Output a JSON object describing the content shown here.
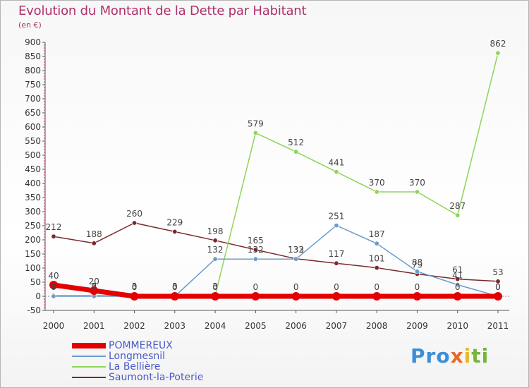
{
  "header": {
    "title": "Evolution du Montant de la Dette par Habitant",
    "subtitle": "(en €)"
  },
  "logo": {
    "text": "Proxiti"
  },
  "chart_data": {
    "type": "line",
    "title": "Evolution du Montant de la Dette par Habitant",
    "ylabel": "(en €)",
    "xlabel": "",
    "x": [
      "2000",
      "2001",
      "2002",
      "2003",
      "2004",
      "2005",
      "2006",
      "2007",
      "2008",
      "2009",
      "2010",
      "2011"
    ],
    "yticks": [
      -50,
      0,
      50,
      100,
      150,
      200,
      250,
      300,
      350,
      400,
      450,
      500,
      550,
      600,
      650,
      700,
      750,
      800,
      850,
      900
    ],
    "ylim": [
      -50,
      900
    ],
    "grid": false,
    "legend": "bottom-left",
    "series": [
      {
        "name": "POMMEREUX",
        "color": "#e50000",
        "width": 7,
        "values": [
          40,
          20,
          0,
          0,
          0,
          0,
          0,
          0,
          0,
          0,
          0,
          0
        ],
        "labels": [
          "40",
          "20",
          "0",
          "0",
          "0",
          "0",
          "0",
          "0",
          "0",
          "0",
          "0",
          "0"
        ]
      },
      {
        "name": "Longmesnil",
        "color": "#6a9ccc",
        "width": 1.5,
        "values": [
          0,
          0,
          0,
          0,
          132,
          132,
          132,
          251,
          187,
          88,
          41,
          0
        ],
        "labels": [
          "0",
          "0",
          "0",
          "0",
          "132",
          "132",
          "132",
          "251",
          "187",
          "88",
          "41",
          "0"
        ]
      },
      {
        "name": "La Bellière",
        "color": "#8fd45a",
        "width": 1.5,
        "values": [
          3,
          3,
          3,
          3,
          3,
          579,
          512,
          441,
          370,
          370,
          287,
          862
        ],
        "labels": [
          "3",
          "3",
          "3",
          "3",
          "3",
          "579",
          "512",
          "441",
          "370",
          "370",
          "287",
          "862"
        ]
      },
      {
        "name": "Saumont-la-Poterie",
        "color": "#7a2a2a",
        "width": 1.5,
        "values": [
          212,
          188,
          260,
          229,
          198,
          165,
          133,
          117,
          101,
          79,
          61,
          53
        ],
        "labels": [
          "212",
          "188",
          "260",
          "229",
          "198",
          "165",
          "133",
          "117",
          "101",
          "79",
          "61",
          "53"
        ]
      }
    ]
  }
}
